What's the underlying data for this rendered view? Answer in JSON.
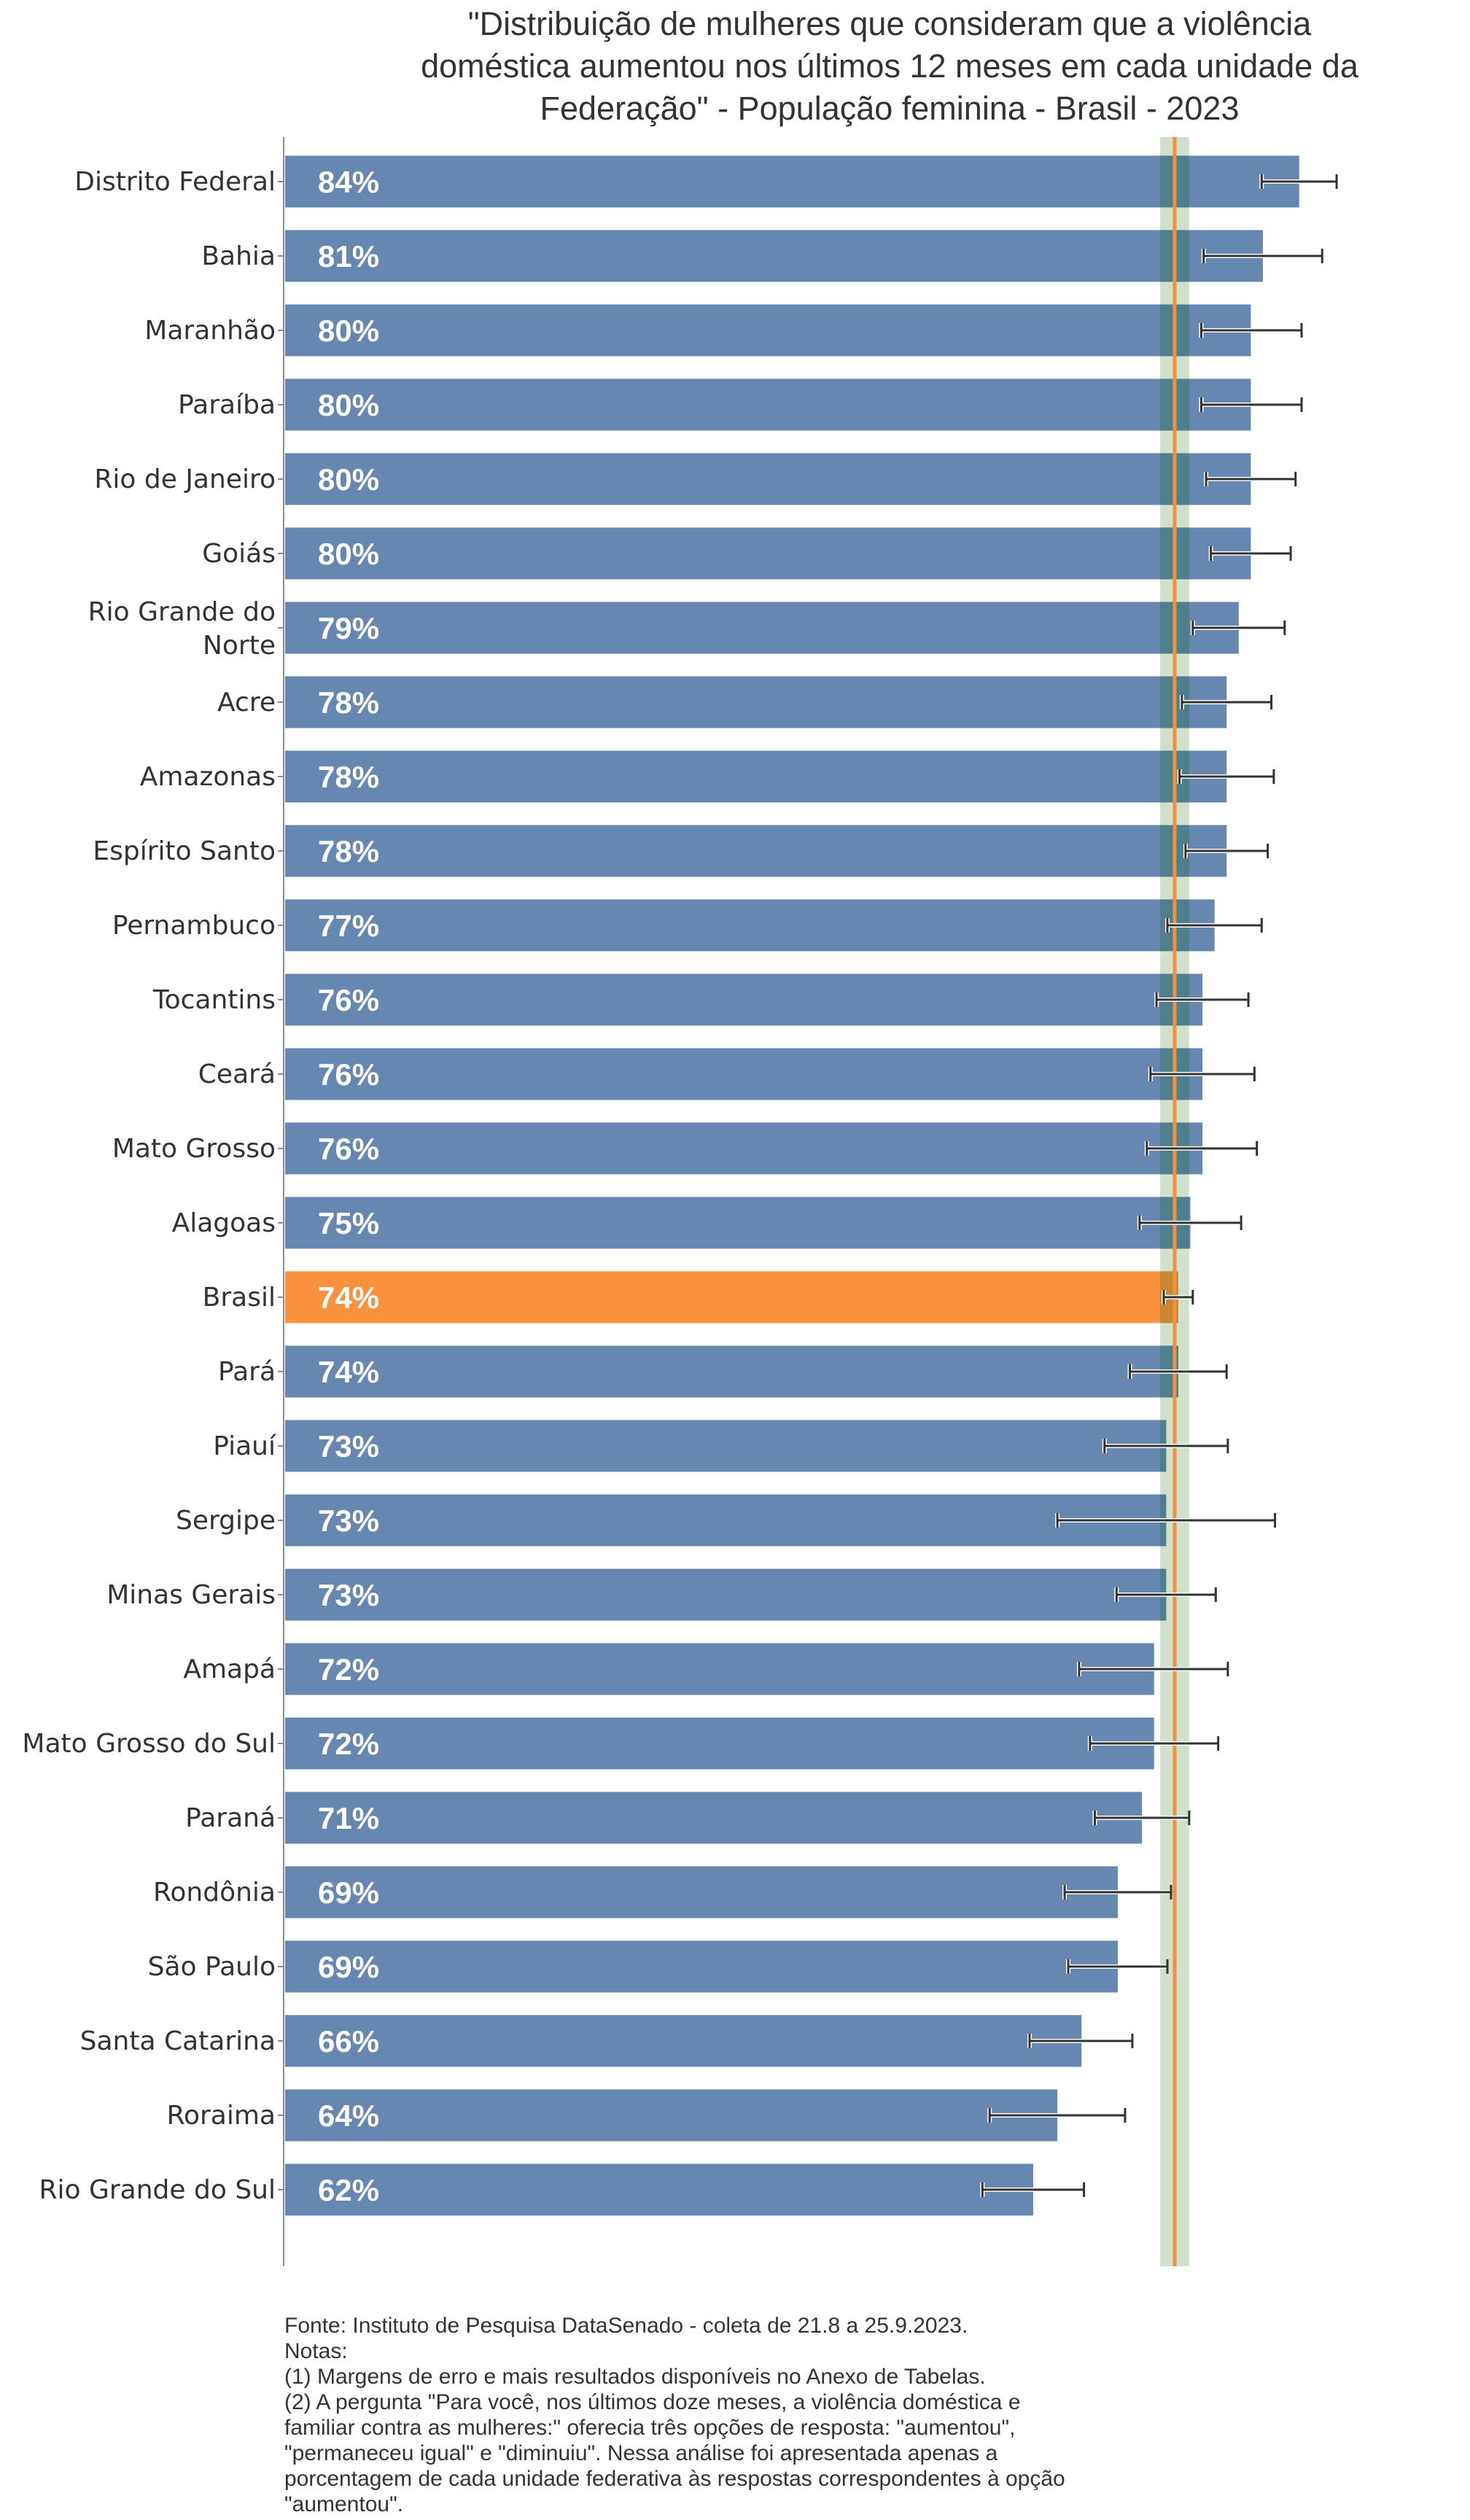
{
  "chart_data": {
    "type": "bar",
    "orientation": "horizontal",
    "title": "\"Distribuição de mulheres que consideram que a violência doméstica aumentou nos últimos 12 meses em cada unidade da Federação\" - População feminina - Brasil - 2023",
    "title_lines": [
      "\"Distribuição de mulheres que consideram que a violência",
      "doméstica aumentou nos últimos 12 meses em cada unidade da",
      "Federação\" - População feminina - Brasil - 2023"
    ],
    "xlabel": "",
    "ylabel": "",
    "xlim": [
      0,
      100
    ],
    "grid": false,
    "value_format": "percent",
    "categories": [
      "Distrito Federal",
      "Bahia",
      "Maranhão",
      "Paraíba",
      "Rio de Janeiro",
      "Goiás",
      "Rio Grande do Norte",
      "Acre",
      "Amazonas",
      "Espírito Santo",
      "Pernambuco",
      "Tocantins",
      "Ceará",
      "Mato Grosso",
      "Alagoas",
      "Brasil",
      "Pará",
      "Piauí",
      "Sergipe",
      "Minas Gerais",
      "Amapá",
      "Mato Grosso do Sul",
      "Paraná",
      "Rondônia",
      "São Paulo",
      "Santa Catarina",
      "Roraima",
      "Rio Grande do Sul"
    ],
    "category_label_lines": {
      "Rio Grande do Norte": [
        "Rio Grande do",
        "Norte"
      ]
    },
    "values": [
      84,
      81,
      80,
      80,
      80,
      80,
      79,
      78,
      78,
      78,
      77,
      76,
      76,
      76,
      75,
      74,
      74,
      73,
      73,
      73,
      72,
      72,
      71,
      69,
      69,
      66,
      64,
      62
    ],
    "value_labels": [
      "84%",
      "81%",
      "80%",
      "80%",
      "80%",
      "80%",
      "79%",
      "78%",
      "78%",
      "78%",
      "77%",
      "76%",
      "76%",
      "76%",
      "75%",
      "74%",
      "74%",
      "73%",
      "73%",
      "73%",
      "72%",
      "72%",
      "71%",
      "69%",
      "69%",
      "66%",
      "64%",
      "62%"
    ],
    "error_low": [
      80.9,
      76.1,
      75.9,
      75.9,
      76.3,
      76.7,
      75.2,
      74.3,
      74.1,
      74.6,
      73.1,
      72.2,
      71.7,
      71.4,
      70.8,
      72.8,
      70.0,
      67.9,
      64.0,
      68.9,
      65.8,
      66.7,
      67.1,
      64.6,
      64.9,
      61.7,
      58.4,
      57.8
    ],
    "error_high": [
      87.1,
      85.9,
      84.2,
      84.2,
      83.7,
      83.3,
      82.8,
      81.7,
      81.9,
      81.4,
      80.9,
      79.8,
      80.3,
      80.5,
      79.2,
      75.2,
      78.0,
      78.1,
      82.0,
      77.1,
      78.1,
      77.3,
      74.9,
      73.4,
      73.1,
      70.2,
      69.6,
      66.2
    ],
    "highlight_category": "Brasil",
    "reference_line": {
      "value": 73.7,
      "band_low": 72.5,
      "band_high": 74.9
    },
    "colors": {
      "bar": "#6587b0",
      "highlight_bar": "#fa913c",
      "reference_line": "#f48f3d",
      "reference_band": "#cfe1cc",
      "error_bar": "#333333",
      "value_label": "#ffffff",
      "axis": "#8c8c8c",
      "text": "#333333"
    }
  },
  "footer": {
    "source": "Fonte: Instituto de Pesquisa DataSenado - coleta de 21.8 a 25.9.2023.",
    "notes_label": "Notas:",
    "note_1": "(1) Margens de erro e mais resultados disponíveis no Anexo de Tabelas.",
    "note_2_lines": [
      "(2) A pergunta \"Para você, nos últimos doze meses, a violência doméstica e",
      "familiar contra as mulheres:\" oferecia três opções de resposta: \"aumentou\",",
      "\"permaneceu igual\" e \"diminuiu\". Nessa análise foi apresentada apenas a",
      "porcentagem de cada unidade federativa às respostas correspondentes à opção",
      "\"aumentou\"."
    ]
  }
}
